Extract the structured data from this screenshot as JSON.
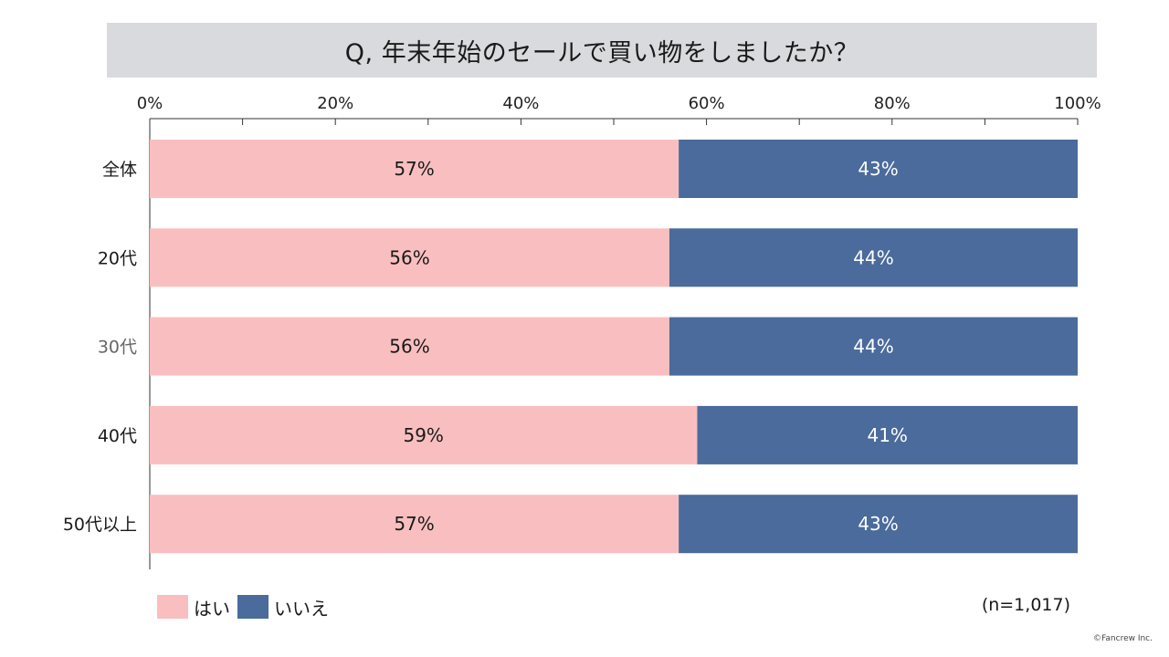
{
  "title": "Q, 年末年始のセールで買い物をしましたか？",
  "sample_note": "(n=1,017)",
  "copyright": "©Fancrew Inc.",
  "colors": {
    "yes": "#f9bfc0",
    "no": "#4a6b9b",
    "axis": "#333333",
    "title_bg": "#d9dadd"
  },
  "legend": [
    {
      "label": "はい",
      "color": "#f9bfc0"
    },
    {
      "label": "いいえ",
      "color": "#4a6b9b"
    }
  ],
  "chart_data": {
    "type": "bar",
    "orientation": "horizontal",
    "stacked": "percent",
    "categories": [
      "全体",
      "20代",
      "30代",
      "40代",
      "50代以上"
    ],
    "series": [
      {
        "name": "はい",
        "values": [
          57,
          56,
          56,
          59,
          57
        ],
        "labels": [
          "57%",
          "56%",
          "56%",
          "59%",
          "57%"
        ]
      },
      {
        "name": "いいえ",
        "values": [
          43,
          44,
          44,
          41,
          43
        ],
        "labels": [
          "43%",
          "44%",
          "44%",
          "41%",
          "43%"
        ]
      }
    ],
    "xlim": [
      0,
      100
    ],
    "xticks": [
      "0%",
      "20%",
      "40%",
      "60%",
      "80%",
      "100%"
    ],
    "grid": false,
    "legend_position": "bottom-left"
  }
}
